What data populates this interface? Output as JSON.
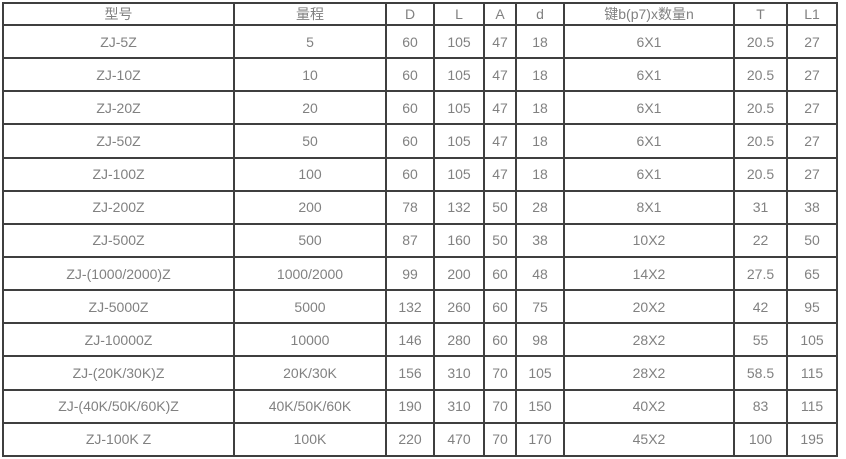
{
  "colors": {
    "border": "#3f3f3f",
    "text": "#818181",
    "background": "#ffffff"
  },
  "chart_data": {
    "type": "table",
    "title": "",
    "columns": [
      "型号",
      "量程",
      "D",
      "L",
      "A",
      "d",
      "键b(p7)x数量n",
      "T",
      "L1"
    ],
    "rows": [
      [
        "ZJ-5Z",
        "5",
        "60",
        "105",
        "47",
        "18",
        "6X1",
        "20.5",
        "27"
      ],
      [
        "ZJ-10Z",
        "10",
        "60",
        "105",
        "47",
        "18",
        "6X1",
        "20.5",
        "27"
      ],
      [
        "ZJ-20Z",
        "20",
        "60",
        "105",
        "47",
        "18",
        "6X1",
        "20.5",
        "27"
      ],
      [
        "ZJ-50Z",
        "50",
        "60",
        "105",
        "47",
        "18",
        "6X1",
        "20.5",
        "27"
      ],
      [
        "ZJ-100Z",
        "100",
        "60",
        "105",
        "47",
        "18",
        "6X1",
        "20.5",
        "27"
      ],
      [
        "ZJ-200Z",
        "200",
        "78",
        "132",
        "50",
        "28",
        "8X1",
        "31",
        "38"
      ],
      [
        "ZJ-500Z",
        "500",
        "87",
        "160",
        "50",
        "38",
        "10X2",
        "22",
        "50"
      ],
      [
        "ZJ-(1000/2000)Z",
        "1000/2000",
        "99",
        "200",
        "60",
        "48",
        "14X2",
        "27.5",
        "65"
      ],
      [
        "ZJ-5000Z",
        "5000",
        "132",
        "260",
        "60",
        "75",
        "20X2",
        "42",
        "95"
      ],
      [
        "ZJ-10000Z",
        "10000",
        "146",
        "280",
        "60",
        "98",
        "28X2",
        "55",
        "105"
      ],
      [
        "ZJ-(20K/30K)Z",
        "20K/30K",
        "156",
        "310",
        "70",
        "105",
        "28X2",
        "58.5",
        "115"
      ],
      [
        "ZJ-(40K/50K/60K)Z",
        "40K/50K/60K",
        "190",
        "310",
        "70",
        "150",
        "40X2",
        "83",
        "115"
      ],
      [
        "ZJ-100K Z",
        "100K",
        "220",
        "470",
        "70",
        "170",
        "45X2",
        "100",
        "195"
      ]
    ]
  }
}
